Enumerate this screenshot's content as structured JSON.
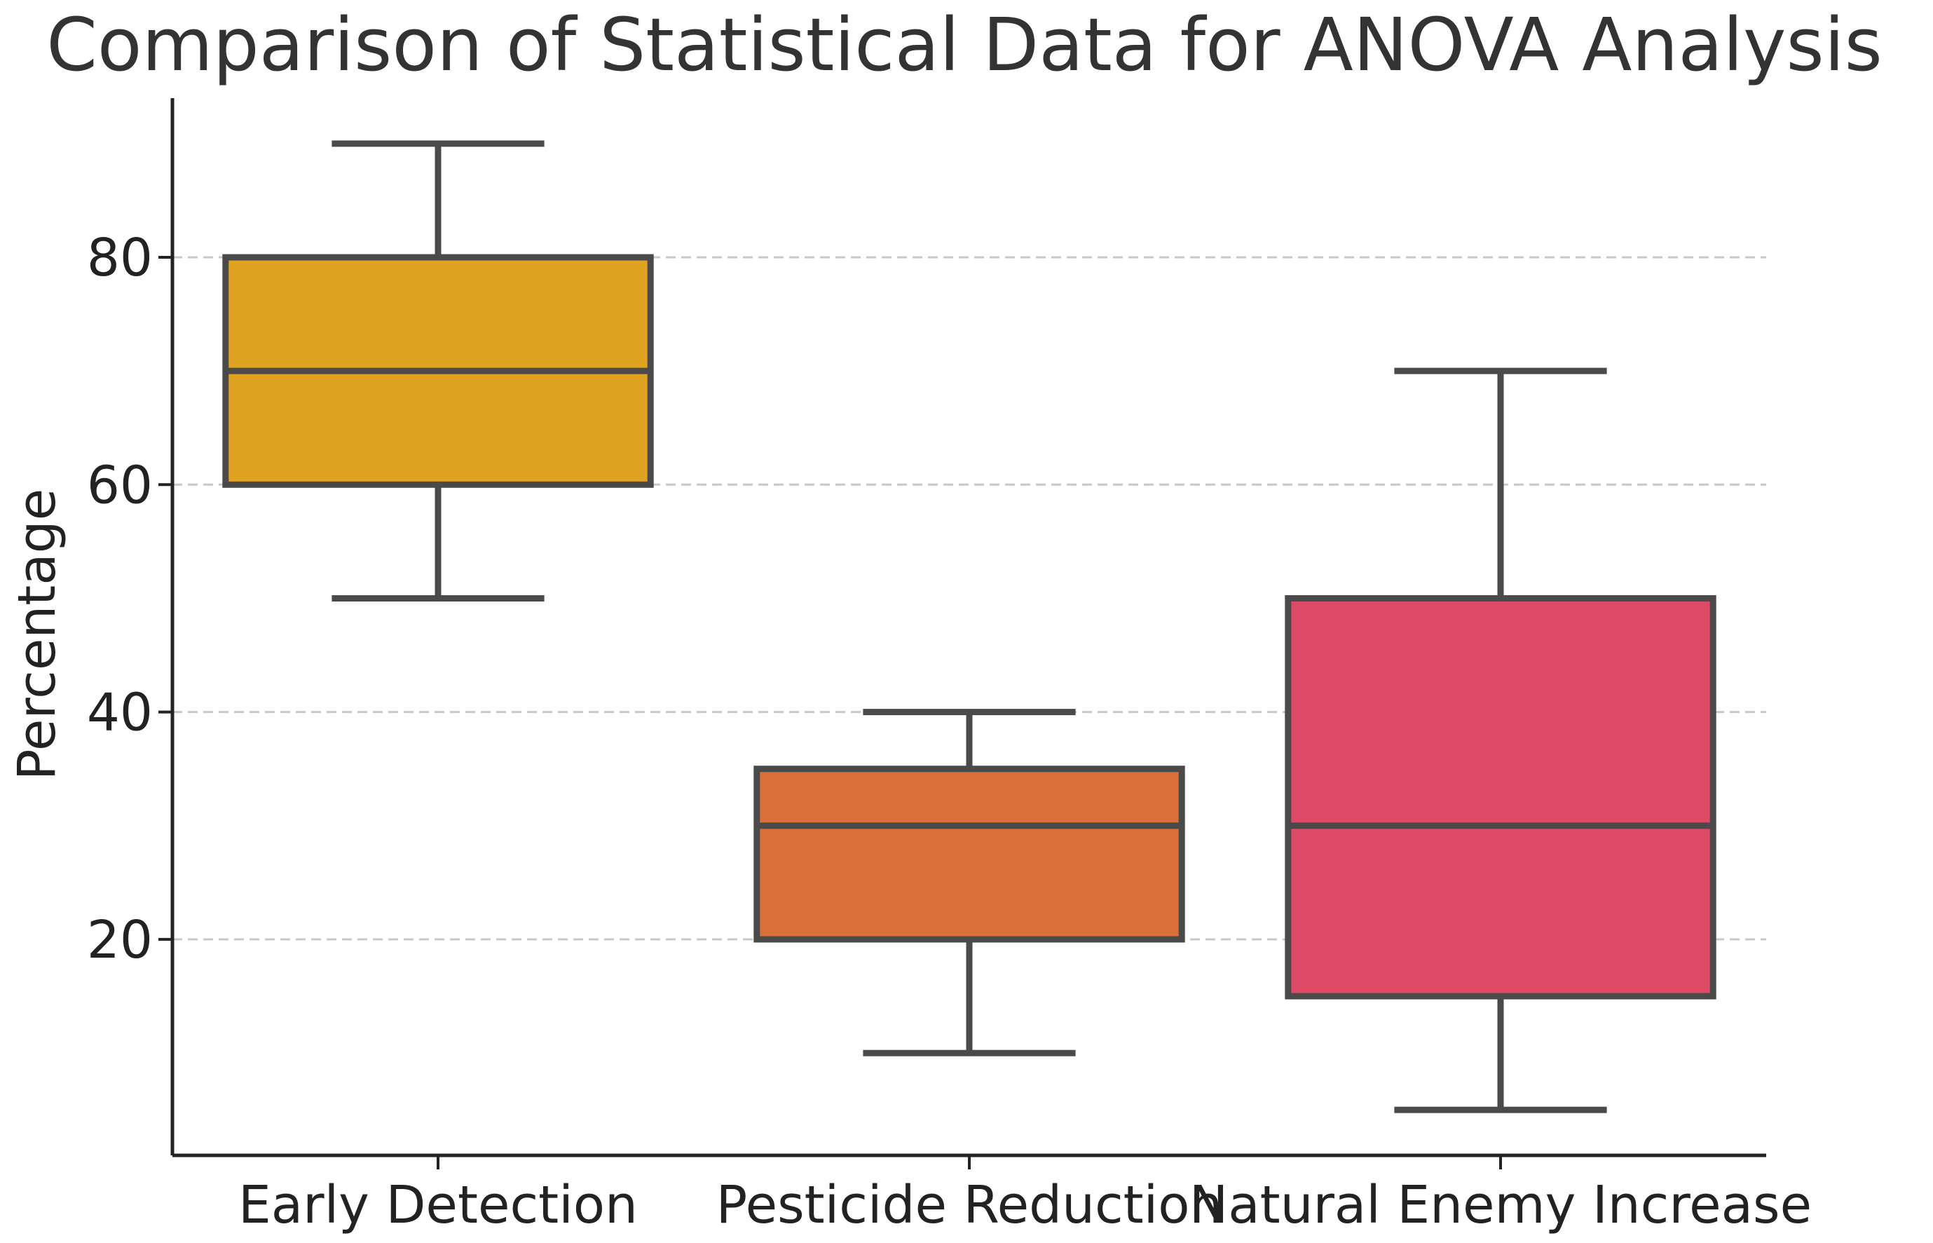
{
  "chart_data": {
    "type": "box",
    "title": "Comparison of Statistical Data for ANOVA Analysis",
    "xlabel": "",
    "ylabel": "Percentage",
    "ylim": [
      1,
      94
    ],
    "yticks": [
      20,
      40,
      60,
      80
    ],
    "grid": "y-dashed",
    "categories": [
      "Early Detection",
      "Pesticide Reduction",
      "Natural Enemy Increase"
    ],
    "boxes": [
      {
        "name": "Early Detection",
        "min": 50,
        "q1": 60,
        "median": 70,
        "q3": 80,
        "max": 90,
        "color": "#E0A321"
      },
      {
        "name": "Pesticide Reduction",
        "min": 10,
        "q1": 20,
        "median": 30,
        "q3": 35,
        "max": 40,
        "color": "#D9703A"
      },
      {
        "name": "Natural Enemy Increase",
        "min": 5,
        "q1": 15,
        "median": 30,
        "q3": 50,
        "max": 70,
        "color": "#DC4A66"
      }
    ]
  }
}
